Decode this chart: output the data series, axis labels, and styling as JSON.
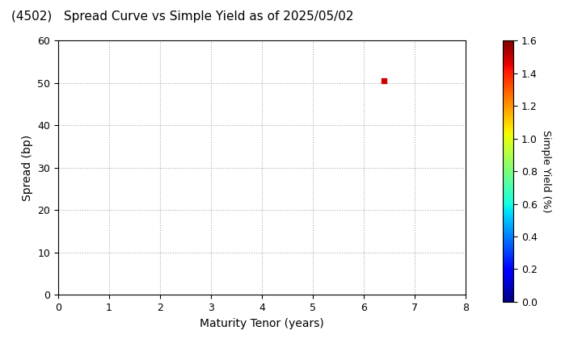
{
  "title": "(4502)   Spread Curve vs Simple Yield as of 2025/05/02",
  "xlabel": "Maturity Tenor (years)",
  "ylabel": "Spread (bp)",
  "colorbar_label": "Simple Yield (%)",
  "xlim": [
    0,
    8
  ],
  "ylim": [
    0,
    60
  ],
  "xticks": [
    0,
    1,
    2,
    3,
    4,
    5,
    6,
    7,
    8
  ],
  "yticks": [
    0,
    10,
    20,
    30,
    40,
    50,
    60
  ],
  "scatter_x": [
    6.4
  ],
  "scatter_y": [
    50.5
  ],
  "scatter_yield": [
    1.49
  ],
  "colormap": "jet",
  "vmin": 0.0,
  "vmax": 1.6,
  "colorbar_ticks": [
    0.0,
    0.2,
    0.4,
    0.6,
    0.8,
    1.0,
    1.2,
    1.4,
    1.6
  ],
  "marker_size": 18,
  "marker_style": "s",
  "grid_color": "#aaaaaa",
  "grid_style": "dotted",
  "background_color": "#ffffff",
  "title_fontsize": 11,
  "axis_label_fontsize": 10,
  "tick_fontsize": 9,
  "colorbar_fontsize": 9
}
